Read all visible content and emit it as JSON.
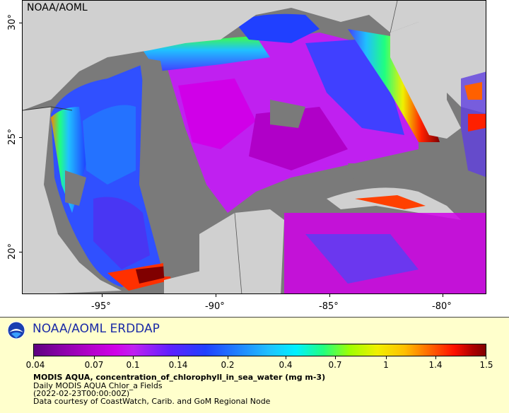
{
  "map": {
    "corner_label": "NOAA/AOML",
    "lat_labels": [
      "30°",
      "25°",
      "20°"
    ],
    "lon_labels": [
      "-95°",
      "-90°",
      "-85°",
      "-80°"
    ]
  },
  "legend": {
    "org_name": "NOAA/AOML ERDDAP",
    "logo_icon": "noaa-logo-icon",
    "colorbar_labels": [
      "0.04",
      "0.07",
      "0.1",
      "0.14",
      "0.2",
      "0.4",
      "0.7",
      "1",
      "1.4",
      "1.5"
    ],
    "title": "MODIS AQUA, concentration_of_chlorophyll_in_sea_water (mg m-3)",
    "line1": "Daily MODIS AQUA Chlor_a Fields",
    "line2": "(2022-02-23T00:00:00Z)",
    "line3": "Data courtesy of CoastWatch, Carib. and GoM Regional Node"
  }
}
